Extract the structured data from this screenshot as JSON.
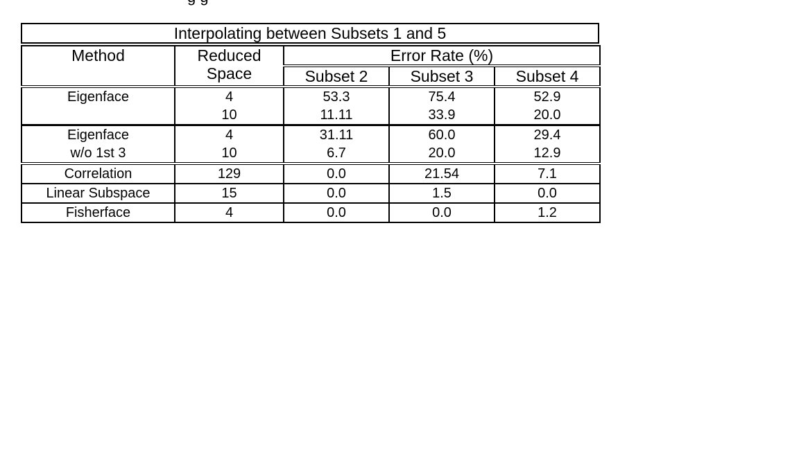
{
  "clipped_top_text": "g     g",
  "table": {
    "title": "Interpolating between Subsets 1 and 5",
    "headers": {
      "method": "Method",
      "reduced_space_line1": "Reduced",
      "reduced_space_line2": "Space",
      "error_rate": "Error Rate (%)",
      "subsets": [
        "Subset 2",
        "Subset 3",
        "Subset 4"
      ]
    },
    "rows": [
      {
        "method": [
          "Eigenface",
          ""
        ],
        "space": [
          "4",
          "10"
        ],
        "subset2": [
          "53.3",
          "11.11"
        ],
        "subset3": [
          "75.4",
          "33.9"
        ],
        "subset4": [
          "52.9",
          "20.0"
        ]
      },
      {
        "method": [
          "Eigenface",
          "w/o 1st 3"
        ],
        "space": [
          "4",
          "10"
        ],
        "subset2": [
          "31.11",
          "6.7"
        ],
        "subset3": [
          "60.0",
          "20.0"
        ],
        "subset4": [
          "29.4",
          "12.9"
        ]
      },
      {
        "method": [
          "Correlation"
        ],
        "space": [
          "129"
        ],
        "subset2": [
          "0.0"
        ],
        "subset3": [
          "21.54"
        ],
        "subset4": [
          "7.1"
        ]
      },
      {
        "method": [
          "Linear Subspace"
        ],
        "space": [
          "15"
        ],
        "subset2": [
          "0.0"
        ],
        "subset3": [
          "1.5"
        ],
        "subset4": [
          "0.0"
        ]
      },
      {
        "method": [
          "Fisherface"
        ],
        "space": [
          "4"
        ],
        "subset2": [
          "0.0"
        ],
        "subset3": [
          "0.0"
        ],
        "subset4": [
          "1.2"
        ]
      }
    ]
  }
}
